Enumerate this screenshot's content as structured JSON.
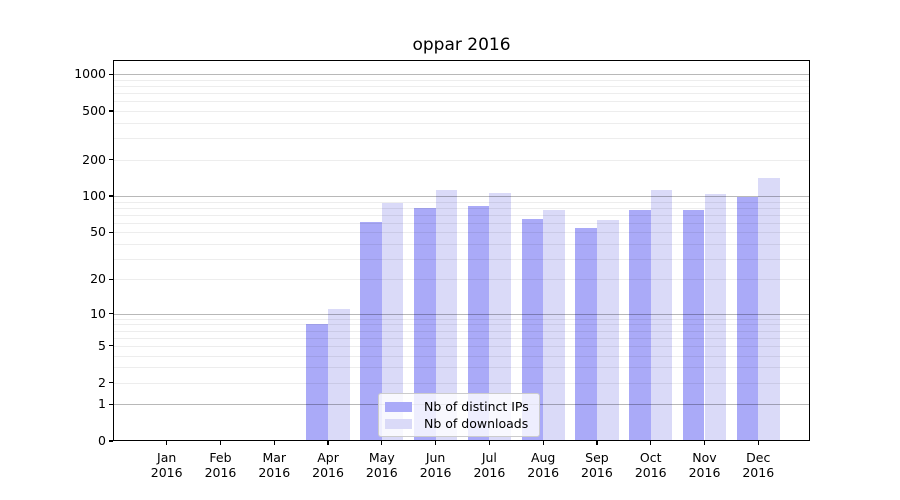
{
  "chart_data": {
    "type": "bar",
    "title": "oppar 2016",
    "categories": [
      "Jan\n2016",
      "Feb\n2016",
      "Mar\n2016",
      "Apr\n2016",
      "May\n2016",
      "Jun\n2016",
      "Jul\n2016",
      "Aug\n2016",
      "Sep\n2016",
      "Oct\n2016",
      "Nov\n2016",
      "Dec\n2016"
    ],
    "series": [
      {
        "name": "Nb of distinct IPs",
        "color": "#aaaaf8",
        "values": [
          0,
          0,
          0,
          8,
          61,
          80,
          82,
          65,
          54,
          77,
          77,
          99
        ]
      },
      {
        "name": "Nb of downloads",
        "color": "#dadaf8",
        "values": [
          0,
          0,
          0,
          11,
          88,
          113,
          107,
          77,
          63,
          112,
          104,
          141
        ]
      }
    ],
    "y_axis": {
      "scale": "log1p",
      "tick_values": [
        0,
        1,
        2,
        5,
        10,
        20,
        50,
        100,
        200,
        500,
        1000
      ],
      "tick_labels": [
        "0",
        "1",
        "2",
        "5",
        "10",
        "20",
        "50",
        "100",
        "200",
        "500",
        "1000"
      ],
      "major_grid_values": [
        1,
        10,
        100,
        1000
      ]
    },
    "xlabel": "",
    "ylabel": "",
    "grid": true,
    "legend_position": "lower center inside"
  },
  "colors": {
    "major_grid": "rgba(0,0,0,0.28)",
    "minor_grid": "rgba(0,0,0,0.07)",
    "background": "#ffffff",
    "spine": "#000000"
  }
}
